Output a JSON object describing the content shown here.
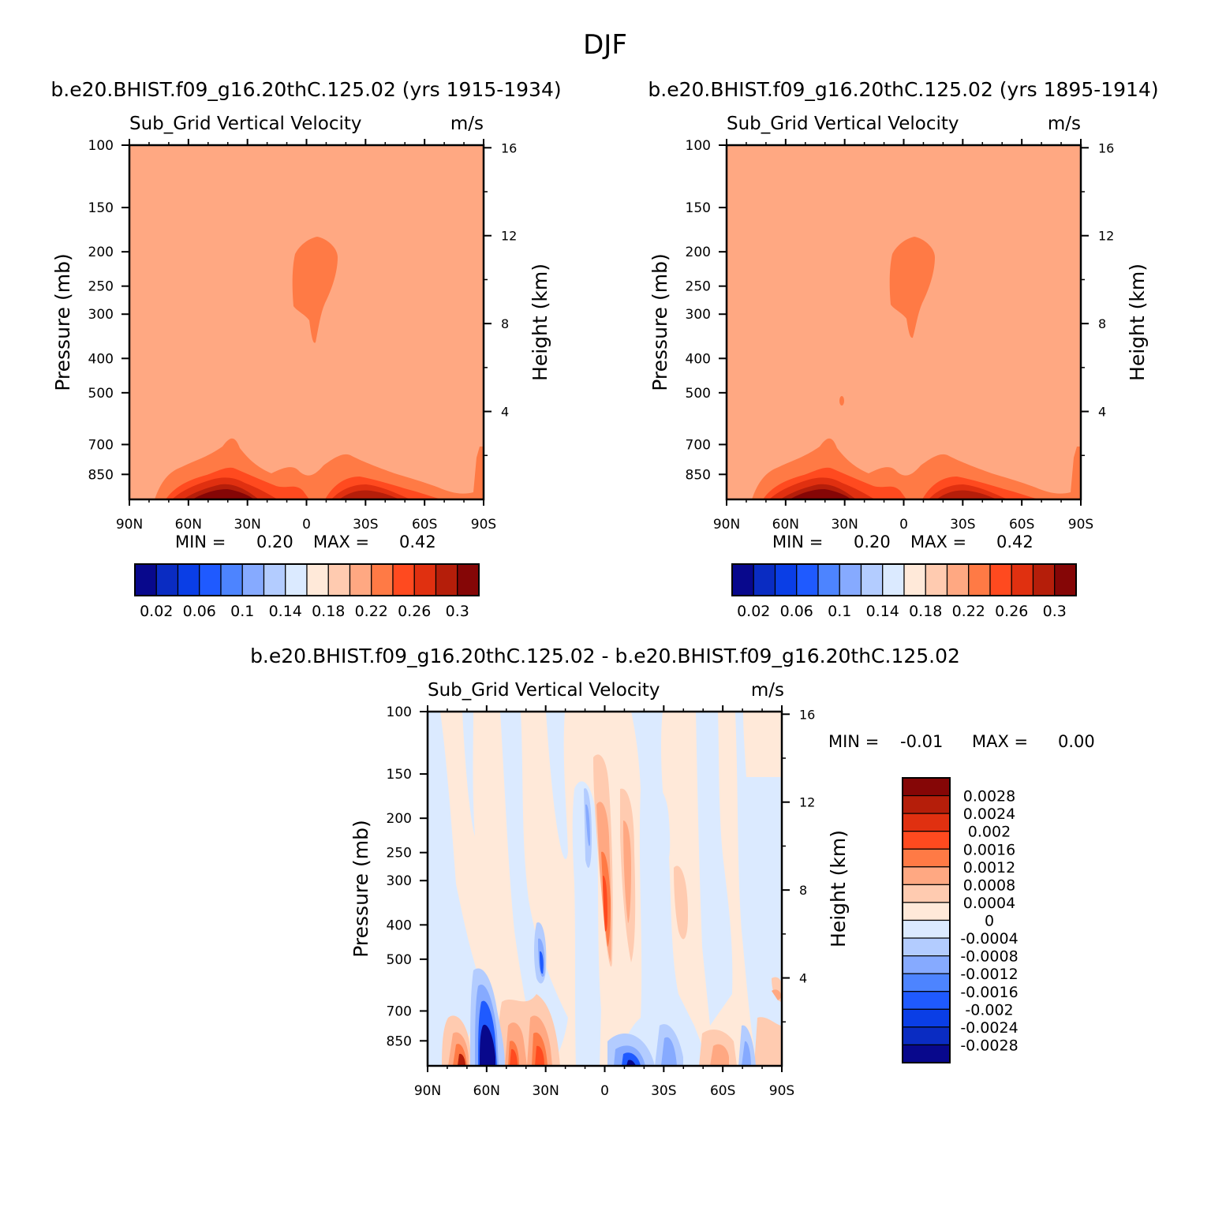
{
  "main_title": "DJF",
  "colors": {
    "field_seq": [
      "#08088c",
      "#0a2cc2",
      "#0a3ee6",
      "#1f5aff",
      "#4d84ff",
      "#86aaff",
      "#b3ccff",
      "#dbeaff",
      "#ffe9d9",
      "#ffcbb0",
      "#ffa882",
      "#ff7a45",
      "#ff4a1f",
      "#e03010",
      "#b51e0a",
      "#850606"
    ],
    "diff_seq": [
      "#08088c",
      "#0a2cc2",
      "#0a3ee6",
      "#1f5aff",
      "#4d84ff",
      "#86aaff",
      "#b3ccff",
      "#dbeaff",
      "#ffe9d9",
      "#ffcbb0",
      "#ffa882",
      "#ff7a45",
      "#ff4a1f",
      "#e03010",
      "#b51e0a",
      "#850606"
    ]
  },
  "chart_data": [
    {
      "type": "heatmap",
      "case_title": "b.e20.BHIST.f09_g16.20thC.125.02 (yrs 1915-1934)",
      "title": "Sub_Grid Vertical Velocity",
      "units": "m/s",
      "ylabel": "Pressure (mb)",
      "y2label": "Height (km)",
      "xlim": [
        "90N",
        "90S"
      ],
      "ylim": [
        1000,
        100
      ],
      "x_ticks": [
        "90N",
        "60N",
        "30N",
        "0",
        "30S",
        "60S",
        "90S"
      ],
      "y_ticks": [
        100,
        150,
        200,
        250,
        300,
        400,
        500,
        700,
        850
      ],
      "y2_ticks": [
        16,
        12,
        8,
        4
      ],
      "min_label": "MIN =",
      "min_value": "0.20",
      "max_label": "MAX =",
      "max_value": "0.42",
      "colorbar_labels": [
        "0.02",
        "0.06",
        "0.1",
        "0.14",
        "0.18",
        "0.22",
        "0.26",
        "0.3"
      ],
      "background_level": 0.22,
      "upper_blob_level": 0.24,
      "lowlevel_max_regions": [
        {
          "lat": 38,
          "peak": 0.42
        },
        {
          "lat": -22,
          "peak": 0.34
        }
      ]
    },
    {
      "type": "heatmap",
      "case_title": "b.e20.BHIST.f09_g16.20thC.125.02 (yrs 1895-1914)",
      "title": "Sub_Grid Vertical Velocity",
      "units": "m/s",
      "ylabel": "Pressure (mb)",
      "y2label": "Height (km)",
      "xlim": [
        "90N",
        "90S"
      ],
      "ylim": [
        1000,
        100
      ],
      "x_ticks": [
        "90N",
        "60N",
        "30N",
        "0",
        "30S",
        "60S",
        "90S"
      ],
      "y_ticks": [
        100,
        150,
        200,
        250,
        300,
        400,
        500,
        700,
        850
      ],
      "y2_ticks": [
        16,
        12,
        8,
        4
      ],
      "min_label": "MIN =",
      "min_value": "0.20",
      "max_label": "MAX =",
      "max_value": "0.42",
      "colorbar_labels": [
        "0.02",
        "0.06",
        "0.1",
        "0.14",
        "0.18",
        "0.22",
        "0.26",
        "0.3"
      ],
      "background_level": 0.22,
      "upper_blob_level": 0.24,
      "lowlevel_max_regions": [
        {
          "lat": 38,
          "peak": 0.42
        },
        {
          "lat": -22,
          "peak": 0.34
        }
      ]
    },
    {
      "type": "heatmap",
      "case_title": "b.e20.BHIST.f09_g16.20thC.125.02 - b.e20.BHIST.f09_g16.20thC.125.02",
      "title": "Sub_Grid Vertical Velocity",
      "units": "m/s",
      "ylabel": "Pressure (mb)",
      "y2label": "Height (km)",
      "xlim": [
        "90N",
        "90S"
      ],
      "ylim": [
        1000,
        100
      ],
      "x_ticks": [
        "90N",
        "60N",
        "30N",
        "0",
        "30S",
        "60S",
        "90S"
      ],
      "y_ticks": [
        100,
        150,
        200,
        250,
        300,
        400,
        500,
        700,
        850
      ],
      "y2_ticks": [
        16,
        12,
        8,
        4
      ],
      "min_label": "MIN =",
      "min_value": "-0.01",
      "max_label": "MAX =",
      "max_value": "0.00",
      "colorbar_labels": [
        "0.0028",
        "0.0024",
        "0.002",
        "0.0016",
        "0.0012",
        "0.0008",
        "0.0004",
        "0",
        "-0.0004",
        "-0.0008",
        "-0.0012",
        "-0.0016",
        "-0.002",
        "-0.0024",
        "-0.0028"
      ],
      "features": [
        {
          "lat": 60,
          "sign": "negative",
          "level": "near-surface"
        },
        {
          "lat": 72,
          "sign": "positive",
          "level": "near-surface"
        },
        {
          "lat": 30,
          "sign": "positive",
          "level": "near-surface"
        },
        {
          "lat": -2,
          "sign": "positive",
          "level": "upper troposphere"
        },
        {
          "lat": 34,
          "sign": "negative",
          "level": "mid troposphere"
        }
      ]
    }
  ]
}
